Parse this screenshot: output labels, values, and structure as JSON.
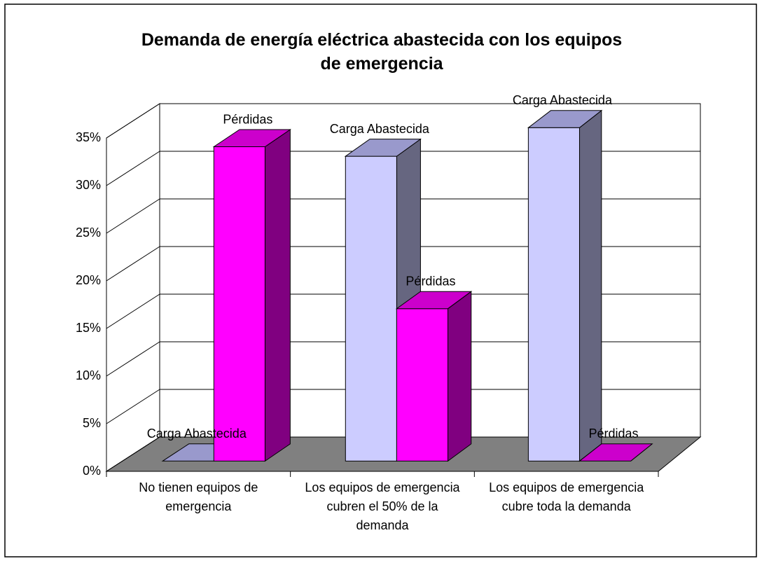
{
  "chart_data": {
    "type": "bar3d",
    "title": "Demanda de energía eléctrica abastecida con los equipos de emergencia",
    "categories": [
      "No tienen equipos de emergencia",
      "Los equipos de emergencia cubren el 50% de la demanda",
      "Los equipos de emergencia cubre toda la demanda"
    ],
    "series": [
      {
        "name": "Carga Abastecida",
        "color": "#ccccff",
        "side": "#666680",
        "top": "#9999cc",
        "values": [
          0,
          32,
          35
        ]
      },
      {
        "name": "Pérdidas",
        "color": "#ff00ff",
        "side": "#800080",
        "top": "#cc00cc",
        "values": [
          33,
          16,
          0
        ]
      }
    ],
    "ylim": [
      0,
      35
    ],
    "yticks": [
      {
        "value": 0,
        "label": "0%"
      },
      {
        "value": 5,
        "label": "5%"
      },
      {
        "value": 10,
        "label": "10%"
      },
      {
        "value": 15,
        "label": "15%"
      },
      {
        "value": 20,
        "label": "20%"
      },
      {
        "value": 25,
        "label": "25%"
      },
      {
        "value": 30,
        "label": "30%"
      },
      {
        "value": 35,
        "label": "35%"
      }
    ],
    "grid": true,
    "floor_color": "#808080"
  }
}
